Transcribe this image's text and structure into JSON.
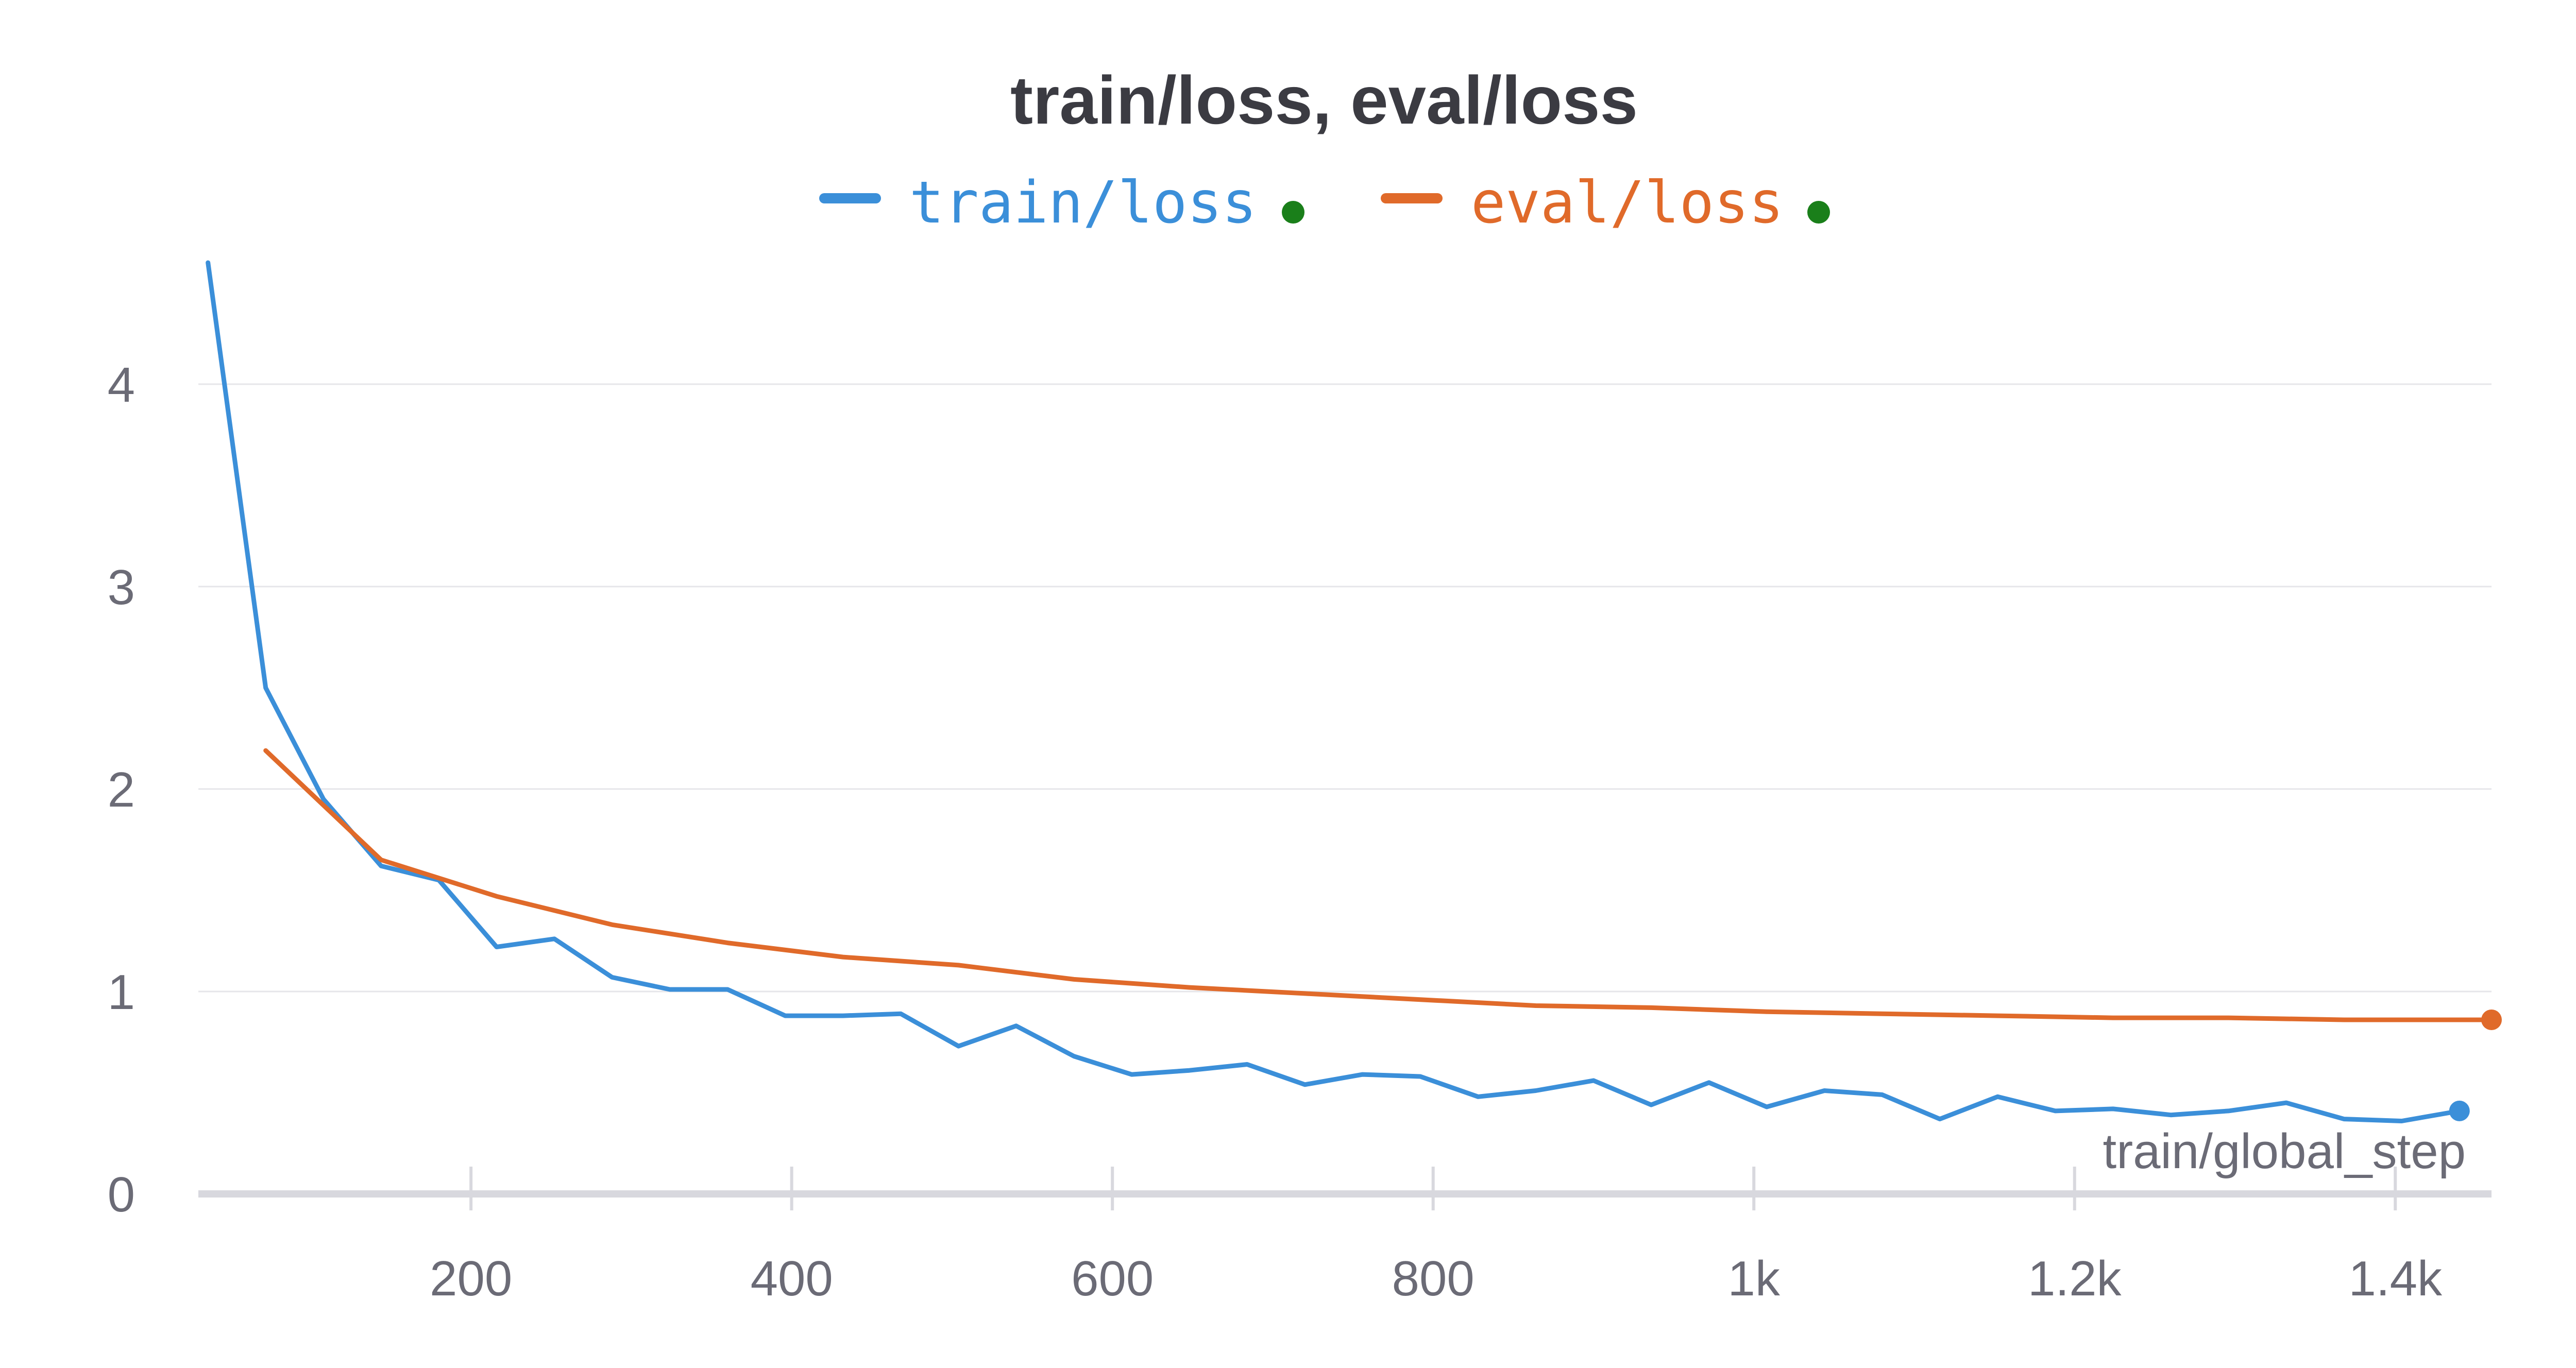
{
  "chart_data": {
    "type": "line",
    "title": "train/loss, eval/loss",
    "xlabel": "train/global_step",
    "ylabel": "",
    "xlim": [
      30,
      1460
    ],
    "ylim": [
      0,
      4.6
    ],
    "x_ticks": [
      {
        "value": 200,
        "label": "200"
      },
      {
        "value": 400,
        "label": "400"
      },
      {
        "value": 600,
        "label": "600"
      },
      {
        "value": 800,
        "label": "800"
      },
      {
        "value": 1000,
        "label": "1k"
      },
      {
        "value": 1200,
        "label": "1.2k"
      },
      {
        "value": 1400,
        "label": "1.4k"
      }
    ],
    "y_ticks": [
      {
        "value": 0,
        "label": "0"
      },
      {
        "value": 1,
        "label": "1"
      },
      {
        "value": 2,
        "label": "2"
      },
      {
        "value": 3,
        "label": "3"
      },
      {
        "value": 4,
        "label": "4"
      }
    ],
    "grid": true,
    "legend_position": "top-center",
    "series": [
      {
        "name": "train/loss",
        "color": "#3b8fd9",
        "status_color": "#1a7f1a",
        "x": [
          36,
          72,
          108,
          144,
          180,
          216,
          252,
          288,
          324,
          360,
          396,
          432,
          468,
          504,
          540,
          576,
          612,
          648,
          684,
          720,
          756,
          792,
          828,
          864,
          900,
          936,
          972,
          1008,
          1044,
          1080,
          1116,
          1152,
          1188,
          1224,
          1260,
          1296,
          1332,
          1368,
          1404,
          1440
        ],
        "values": [
          4.6,
          2.5,
          1.95,
          1.62,
          1.55,
          1.22,
          1.26,
          1.07,
          1.01,
          1.01,
          0.88,
          0.88,
          0.89,
          0.73,
          0.83,
          0.68,
          0.59,
          0.61,
          0.64,
          0.54,
          0.59,
          0.58,
          0.48,
          0.51,
          0.56,
          0.44,
          0.55,
          0.43,
          0.51,
          0.49,
          0.37,
          0.48,
          0.41,
          0.42,
          0.39,
          0.41,
          0.45,
          0.37,
          0.36,
          0.41
        ]
      },
      {
        "name": "eval/loss",
        "color": "#e06a2a",
        "status_color": "#1a7f1a",
        "x": [
          72,
          144,
          216,
          288,
          360,
          432,
          504,
          576,
          648,
          720,
          792,
          864,
          936,
          1008,
          1080,
          1152,
          1224,
          1296,
          1368,
          1460
        ],
        "values": [
          2.19,
          1.65,
          1.47,
          1.33,
          1.24,
          1.17,
          1.13,
          1.06,
          1.02,
          0.99,
          0.96,
          0.93,
          0.92,
          0.9,
          0.89,
          0.88,
          0.87,
          0.87,
          0.86,
          0.86
        ]
      }
    ]
  }
}
